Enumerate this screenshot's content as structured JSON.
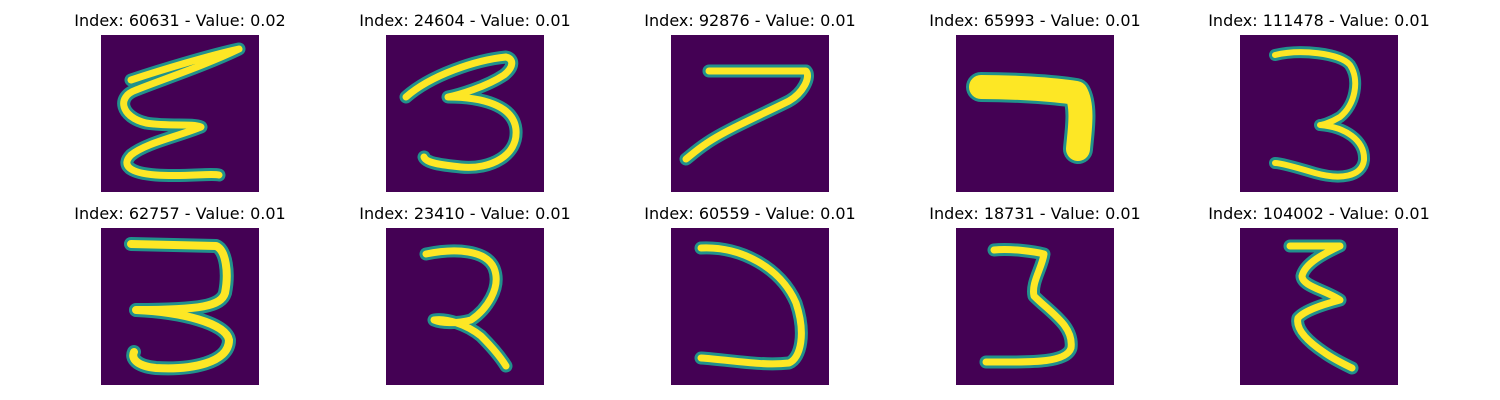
{
  "colors": {
    "background": "#440154",
    "stroke_mid": "#21918c",
    "stroke_core": "#fde725"
  },
  "panels": [
    {
      "caption": "Index: 60631 - Value: 0.02",
      "glyph": "handwritten-digit-3-mirrored"
    },
    {
      "caption": "Index: 24604 - Value: 0.01",
      "glyph": "handwritten-digit-3"
    },
    {
      "caption": "Index: 92876 - Value: 0.01",
      "glyph": "handwritten-digit-7"
    },
    {
      "caption": "Index: 65993 - Value: 0.01",
      "glyph": "handwritten-digit-7-thick"
    },
    {
      "caption": "Index: 111478 - Value: 0.01",
      "glyph": "handwritten-digit-3"
    },
    {
      "caption": "Index: 62757 - Value: 0.01",
      "glyph": "handwritten-digit-3"
    },
    {
      "caption": "Index: 23410 - Value: 0.01",
      "glyph": "handwritten-digit-3"
    },
    {
      "caption": "Index: 60559 - Value: 0.01",
      "glyph": "handwritten-digit-hook"
    },
    {
      "caption": "Index: 18731 - Value: 0.01",
      "glyph": "handwritten-digit-3"
    },
    {
      "caption": "Index: 104002 - Value: 0.01",
      "glyph": "handwritten-digit-3-mirrored"
    }
  ]
}
